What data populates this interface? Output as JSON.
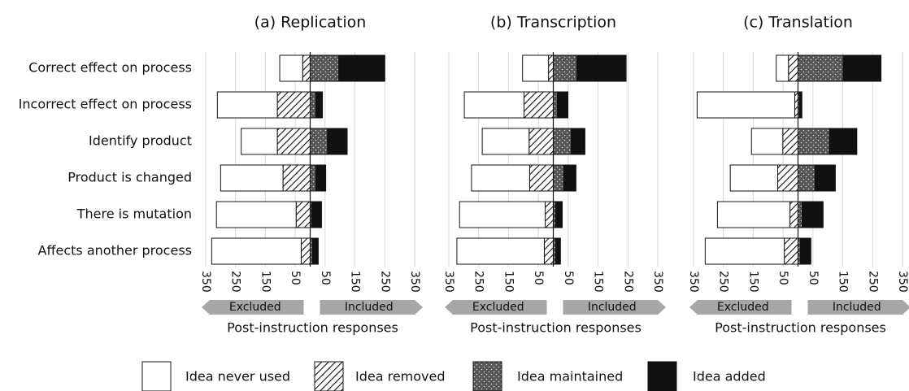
{
  "chart_data": [
    {
      "type": "bar",
      "title": "(a) Replication",
      "xlabel": "Post-instruction responses",
      "left_arrow": "Excluded",
      "right_arrow": "Included",
      "categories": [
        "Correct effect on process",
        "Incorrect effect on process",
        "Identify product",
        "Product is changed",
        "There is mutation",
        "Affects another process"
      ],
      "xlim": [
        -350,
        350
      ],
      "xticks": [
        {
          "value": -350,
          "label": "350"
        },
        {
          "value": -250,
          "label": "250"
        },
        {
          "value": -150,
          "label": "150"
        },
        {
          "value": -50,
          "label": "50"
        },
        50,
        150,
        250,
        350
      ],
      "grid": true,
      "series": [
        {
          "name": "Idea never used",
          "color": "#ffffff",
          "values": [
            -77,
            -201,
            -121,
            -209,
            -267,
            -300
          ]
        },
        {
          "name": "Idea removed",
          "color": "#ffffff",
          "pattern": "hatch",
          "values": [
            -25,
            -110,
            -110,
            -91,
            -47,
            -30
          ]
        },
        {
          "name": "Idea maintained",
          "color": "#555555",
          "pattern": "dots",
          "values": [
            96,
            19,
            58,
            19,
            5,
            8
          ]
        },
        {
          "name": "Idea added",
          "color": "#111111",
          "values": [
            154,
            22,
            66,
            33,
            33,
            19
          ]
        }
      ]
    },
    {
      "type": "bar",
      "title": "(b) Transcription",
      "xlabel": "Post-instruction responses",
      "left_arrow": "Excluded",
      "right_arrow": "Included",
      "xlim": [
        -350,
        350
      ],
      "xticks": [
        {
          "value": -350,
          "label": "350"
        },
        {
          "value": -250,
          "label": "250"
        },
        {
          "value": -150,
          "label": "150"
        },
        {
          "value": -50,
          "label": "50"
        },
        50,
        150,
        250,
        350
      ],
      "grid": true,
      "series": [
        {
          "color": "#ffffff",
          "values": [
            -87,
            -200,
            -157,
            -195,
            -287,
            -293
          ]
        },
        {
          "color": "#ffffff",
          "pattern": "hatch",
          "values": [
            -16,
            -98,
            -81,
            -79,
            -27,
            -30
          ]
        },
        {
          "color": "#555555",
          "pattern": "dots",
          "values": [
            79,
            14,
            60,
            35,
            8,
            8
          ]
        },
        {
          "color": "#111111",
          "values": [
            165,
            35,
            46,
            41,
            22,
            16
          ]
        }
      ]
    },
    {
      "type": "bar",
      "title": "(c) Translation",
      "xlabel": "Post-instruction responses",
      "left_arrow": "Excluded",
      "right_arrow": "Included",
      "xlim": [
        -350,
        350
      ],
      "xticks": [
        {
          "value": -350,
          "label": "350"
        },
        {
          "value": -250,
          "label": "250"
        },
        {
          "value": -150,
          "label": "150"
        },
        {
          "value": -50,
          "label": "50"
        },
        50,
        150,
        250,
        350
      ],
      "grid": true,
      "series": [
        {
          "color": "#ffffff",
          "values": [
            -41,
            -327,
            -105,
            -159,
            -243,
            -265
          ]
        },
        {
          "color": "#ffffff",
          "pattern": "hatch",
          "values": [
            -32,
            -11,
            -51,
            -68,
            -27,
            -46
          ]
        },
        {
          "color": "#555555",
          "pattern": "dots",
          "values": [
            151,
            5,
            105,
            57,
            14,
            8
          ]
        },
        {
          "color": "#111111",
          "values": [
            127,
            8,
            92,
            68,
            70,
            35
          ]
        }
      ]
    }
  ]
}
